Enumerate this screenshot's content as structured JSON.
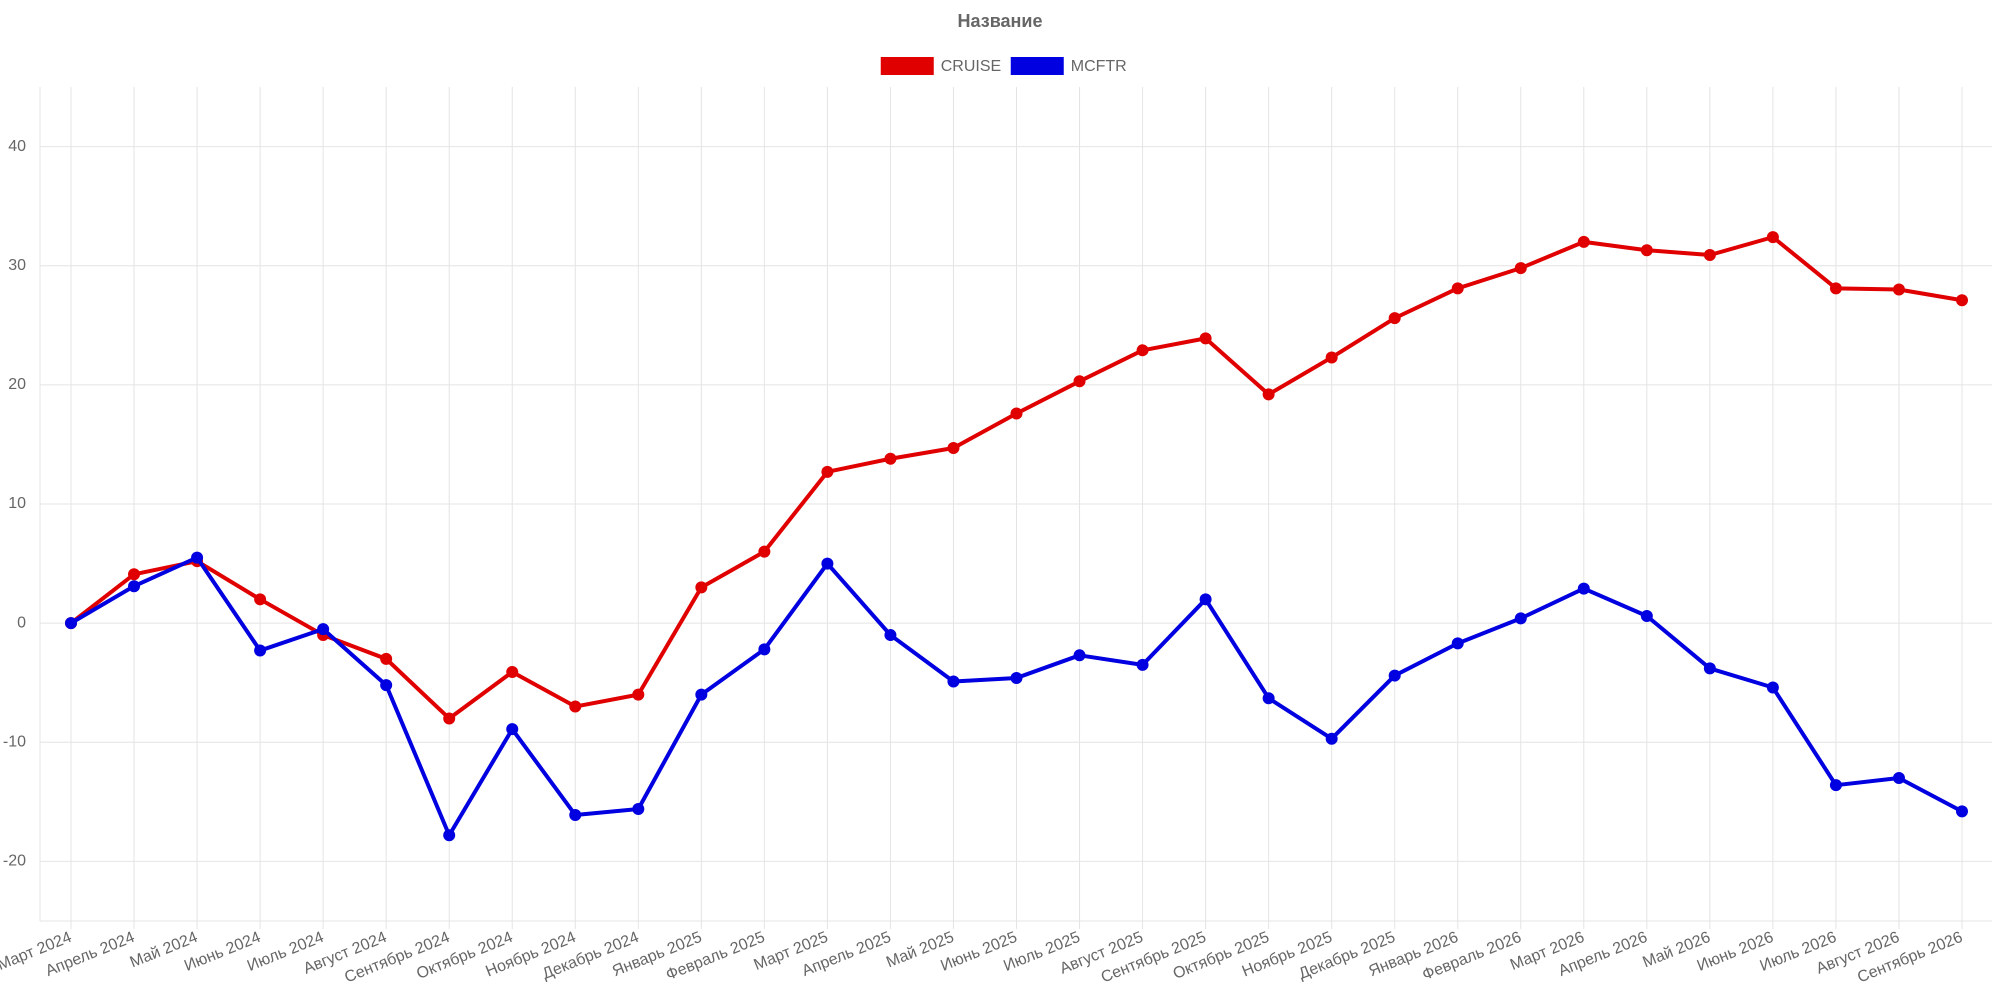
{
  "chart_data": {
    "type": "line",
    "title": "Название",
    "categories": [
      "Март 2024",
      "Апрель 2024",
      "Май 2024",
      "Июнь 2024",
      "Июль 2024",
      "Август 2024",
      "Сентябрь 2024",
      "Октябрь 2024",
      "Ноябрь 2024",
      "Декабрь 2024",
      "Январь 2025",
      "Февраль 2025",
      "Март 2025",
      "Апрель 2025",
      "Май 2025",
      "Июнь 2025",
      "Июль 2025",
      "Август 2025",
      "Сентябрь 2025",
      "Октябрь 2025",
      "Ноябрь 2025",
      "Декабрь 2025",
      "Январь 2026",
      "Февраль 2026",
      "Март 2026",
      "Апрель 2026",
      "Май 2026",
      "Июнь 2026",
      "Июль 2026",
      "Август 2026",
      "Сентябрь 2026"
    ],
    "series": [
      {
        "name": "CRUISE",
        "color": "#e00000",
        "values": [
          0,
          4.1,
          5.2,
          2.0,
          -1.0,
          -3.0,
          -8.0,
          -4.1,
          -7.0,
          -6.0,
          3.0,
          6.0,
          12.7,
          13.8,
          14.7,
          17.6,
          20.3,
          22.9,
          23.9,
          19.2,
          22.3,
          25.6,
          28.1,
          29.8,
          32.0,
          31.3,
          30.9,
          32.4,
          28.1,
          28.0,
          27.1
        ]
      },
      {
        "name": "MCFTR",
        "color": "#0000e0",
        "values": [
          0,
          3.1,
          5.5,
          -2.3,
          -0.5,
          -5.2,
          -17.8,
          -8.9,
          -16.1,
          -15.6,
          -6.0,
          -2.2,
          5.0,
          -1.0,
          -4.9,
          -4.6,
          -2.7,
          -3.5,
          2.0,
          -6.3,
          -9.7,
          -4.4,
          -1.7,
          0.4,
          2.9,
          0.6,
          -3.8,
          -5.4,
          -13.6,
          -13.0,
          -15.8
        ]
      }
    ],
    "ylim": [
      -25,
      45
    ],
    "yticks": [
      -20,
      -10,
      0,
      10,
      20,
      30,
      40
    ],
    "grid": true,
    "legend": "top"
  }
}
